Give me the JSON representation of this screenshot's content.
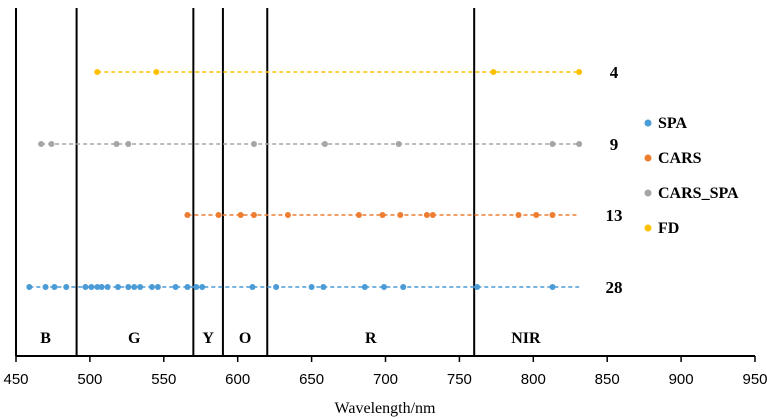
{
  "chart_data": {
    "type": "scatter",
    "xlabel": "Wavelength/nm",
    "ylabel": "",
    "xlim": [
      450,
      950
    ],
    "x_ticks": [
      450,
      500,
      550,
      600,
      650,
      700,
      750,
      800,
      850,
      900,
      950
    ],
    "grid": false,
    "legend_position": "right",
    "band_boundaries": [
      491,
      570,
      590,
      620,
      760
    ],
    "bands": [
      {
        "label": "B",
        "x": 470
      },
      {
        "label": "G",
        "x": 530
      },
      {
        "label": "Y",
        "x": 580
      },
      {
        "label": "O",
        "x": 605
      },
      {
        "label": "R",
        "x": 690
      },
      {
        "label": "NIR",
        "x": 795
      }
    ],
    "series": [
      {
        "name": "FD",
        "color": "#FFC000",
        "count_label": "4",
        "x": [
          505,
          545,
          773,
          831
        ]
      },
      {
        "name": "CARS_SPA",
        "color": "#A5A5A5",
        "count_label": "9",
        "x": [
          467,
          474,
          518,
          526,
          611,
          659,
          709,
          813,
          831
        ]
      },
      {
        "name": "CARS",
        "color": "#ED7D31",
        "count_label": "13",
        "x": [
          566,
          587,
          602,
          611,
          634,
          682,
          698,
          710,
          728,
          732,
          790,
          802,
          813
        ]
      },
      {
        "name": "SPA",
        "color": "#4A9BD6",
        "count_label": "28",
        "x": [
          459,
          470,
          476,
          484,
          497,
          501,
          505,
          508,
          512,
          519,
          526,
          530,
          534,
          542,
          546,
          558,
          566,
          572,
          576,
          610,
          626,
          650,
          658,
          686,
          699,
          712,
          762,
          813
        ]
      }
    ],
    "legend_order": [
      "SPA",
      "CARS",
      "CARS_SPA",
      "FD"
    ]
  }
}
